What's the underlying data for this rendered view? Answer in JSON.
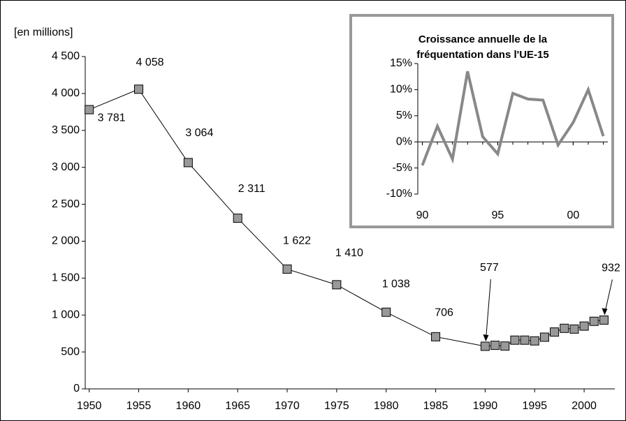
{
  "chart_data": [
    {
      "type": "line",
      "y_axis_label": "[en millions]",
      "x": [
        1950,
        1955,
        1960,
        1965,
        1970,
        1975,
        1980,
        1985,
        1990,
        1991,
        1992,
        1993,
        1994,
        1995,
        1996,
        1997,
        1998,
        1999,
        2000,
        2001,
        2002
      ],
      "series": [
        {
          "name": "Fréquentation",
          "color": "#999999",
          "values": [
            3781,
            4058,
            3064,
            2311,
            1622,
            1410,
            1038,
            706,
            577,
            590,
            580,
            660,
            660,
            650,
            700,
            770,
            820,
            810,
            850,
            915,
            932
          ],
          "value_labels": [
            "3 781",
            "4 058",
            "3 064",
            "2 311",
            "1 622",
            "1 410",
            "1 038",
            "706",
            "577",
            null,
            null,
            null,
            null,
            null,
            null,
            null,
            null,
            null,
            null,
            null,
            "932"
          ]
        }
      ],
      "xlim": [
        1949.6,
        2003.1
      ],
      "xticks": [
        1950,
        1955,
        1960,
        1965,
        1970,
        1975,
        1980,
        1985,
        1990,
        1995,
        2000
      ],
      "ylim": [
        0,
        4500
      ],
      "yticks": [
        0,
        500,
        {
          "value": 1000,
          "label": "1 000"
        },
        {
          "value": 1500,
          "label": "1 500"
        },
        {
          "value": 2000,
          "label": "2 000"
        },
        {
          "value": 2500,
          "label": "2 500"
        },
        {
          "value": 3000,
          "label": "3 000"
        },
        {
          "value": 3500,
          "label": "3 500"
        },
        {
          "value": 4000,
          "label": "4 000"
        },
        {
          "value": 4500,
          "label": "4 500"
        }
      ]
    },
    {
      "type": "line",
      "title": [
        "Croissance annuelle de la",
        "fréquentation dans l'UE-15"
      ],
      "x": [
        1990,
        1991,
        1992,
        1993,
        1994,
        1995,
        1996,
        1997,
        1998,
        1999,
        2000,
        2001,
        2002
      ],
      "series": [
        {
          "name": "Croissance",
          "color": "#888888",
          "values": [
            -4.5,
            3,
            -3.3,
            13.5,
            1,
            -2.3,
            9.3,
            8.2,
            8,
            -0.6,
            3.7,
            10,
            1.1
          ]
        }
      ],
      "xlim": [
        1989.7,
        2002.3
      ],
      "xticks": [
        {
          "value": 1990,
          "label": "90"
        },
        {
          "value": 1995,
          "label": "95"
        },
        {
          "value": 2000,
          "label": "00"
        }
      ],
      "ylim": [
        -10,
        15
      ],
      "yticks": [
        {
          "value": -10,
          "label": "-10%"
        },
        {
          "value": -5,
          "label": "-5%"
        },
        {
          "value": 0,
          "label": "0%"
        },
        {
          "value": 5,
          "label": "5%"
        },
        {
          "value": 10,
          "label": "10%"
        },
        {
          "value": 15,
          "label": "15%"
        }
      ]
    }
  ]
}
